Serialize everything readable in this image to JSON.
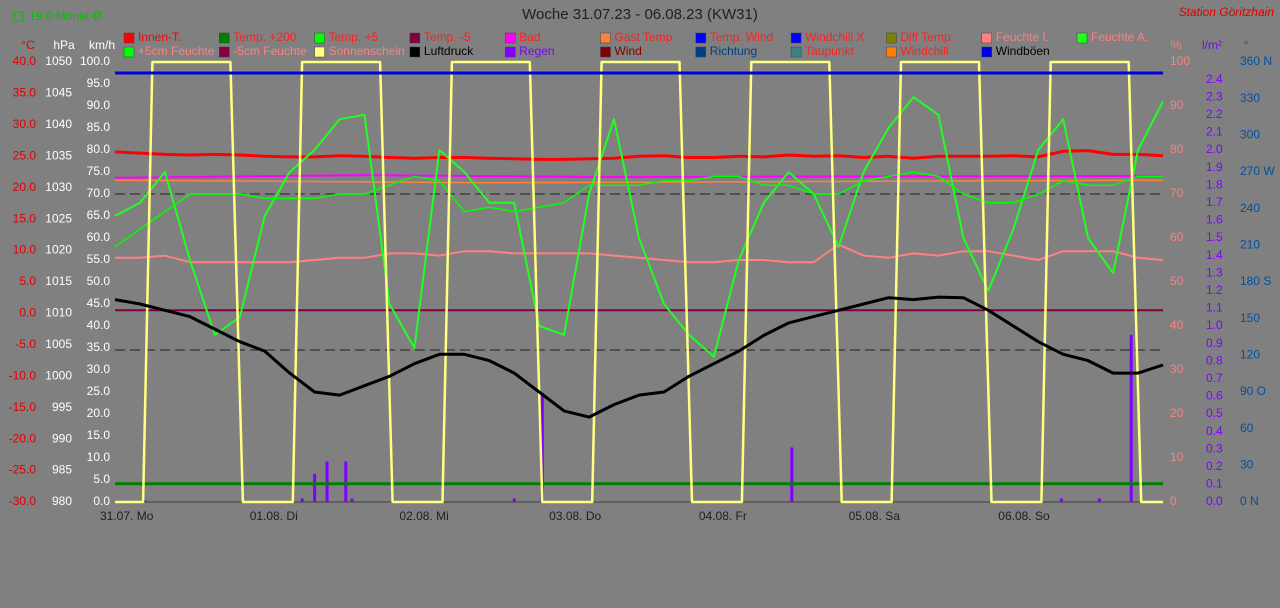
{
  "chart_data": {
    "type": "line",
    "title": "Woche 31.07.23 - 06.08.23 (KW31)",
    "station": "Station Göritzhain",
    "month_avg": "19.0 Monat-Ø",
    "x": [
      0,
      4,
      8,
      12,
      16,
      20,
      24,
      28,
      32,
      36,
      40,
      44,
      48,
      52,
      56,
      60,
      64,
      68,
      72,
      76,
      80,
      84,
      88,
      92,
      96,
      100,
      104,
      108,
      112,
      116,
      120,
      124,
      128,
      132,
      136,
      140,
      144,
      148,
      152,
      156,
      160,
      164,
      168
    ],
    "xlim": [
      0,
      168
    ],
    "xticks": [
      {
        "value": 0,
        "label": "31.07.  Mo"
      },
      {
        "value": 24,
        "label": "01.08.  Di"
      },
      {
        "value": 48,
        "label": "02.08.  Mi"
      },
      {
        "value": 72,
        "label": "03.08.  Do"
      },
      {
        "value": 96,
        "label": "04.08.  Fr"
      },
      {
        "value": 120,
        "label": "05.08.  Sa"
      },
      {
        "value": 144,
        "label": "06.08.  So"
      }
    ],
    "axes": [
      {
        "label": "°C",
        "color": "#e00000",
        "side": "left",
        "ylim": [
          -30,
          40
        ],
        "yticks": [
          {
            "value": -30,
            "label": "-30.0"
          },
          {
            "value": -25,
            "label": "-25.0"
          },
          {
            "value": -20,
            "label": "-20.0"
          },
          {
            "value": -15,
            "label": "-15.0"
          },
          {
            "value": -10,
            "label": "-10.0"
          },
          {
            "value": -5,
            "label": "-5.0"
          },
          {
            "value": 0,
            "label": "0.0"
          },
          {
            "value": 5,
            "label": "5.0"
          },
          {
            "value": 10,
            "label": "10.0"
          },
          {
            "value": 15,
            "label": "15.0"
          },
          {
            "value": 20,
            "label": "20.0"
          },
          {
            "value": 25,
            "label": "25.0"
          },
          {
            "value": 30,
            "label": "30.0"
          },
          {
            "value": 35,
            "label": "35.0"
          },
          {
            "value": 40,
            "label": "40.0"
          }
        ]
      },
      {
        "label": "hPa",
        "color": "#ffffff",
        "side": "left",
        "ylim": [
          980,
          1050
        ],
        "yticks": [
          980,
          985,
          990,
          995,
          1000,
          1005,
          1010,
          1015,
          1020,
          1025,
          1030,
          1035,
          1040,
          1045,
          1050
        ]
      },
      {
        "label": "km/h",
        "color": "#ffffff",
        "side": "left",
        "ylim": [
          0,
          100
        ],
        "yticks": [
          {
            "value": 0,
            "label": "0.0"
          },
          {
            "value": 5,
            "label": "5.0"
          },
          {
            "value": 10,
            "label": "10.0"
          },
          {
            "value": 15,
            "label": "15.0"
          },
          {
            "value": 20,
            "label": "20.0"
          },
          {
            "value": 25,
            "label": "25.0"
          },
          {
            "value": 30,
            "label": "30.0"
          },
          {
            "value": 35,
            "label": "35.0"
          },
          {
            "value": 40,
            "label": "40.0"
          },
          {
            "value": 45,
            "label": "45.0"
          },
          {
            "value": 50,
            "label": "50.0"
          },
          {
            "value": 55,
            "label": "55.0"
          },
          {
            "value": 60,
            "label": "60.0"
          },
          {
            "value": 65,
            "label": "65.0"
          },
          {
            "value": 70,
            "label": "70.0"
          },
          {
            "value": 75,
            "label": "75.0"
          },
          {
            "value": 80,
            "label": "80.0"
          },
          {
            "value": 85,
            "label": "85.0"
          },
          {
            "value": 90,
            "label": "90.0"
          },
          {
            "value": 95,
            "label": "95.0"
          },
          {
            "value": 100,
            "label": "100.0"
          }
        ]
      },
      {
        "label": "%",
        "color": "#ff8080",
        "side": "right",
        "ylim": [
          0,
          100
        ],
        "yticks": [
          0,
          10,
          20,
          30,
          40,
          50,
          60,
          70,
          80,
          90,
          100
        ]
      },
      {
        "label": "l/m²",
        "color": "#8000ff",
        "side": "right",
        "ylim": [
          0,
          2.5
        ],
        "yticks": [
          {
            "value": 0,
            "label": "0.0"
          },
          0.1,
          0.2,
          0.3,
          0.4,
          0.5,
          0.6,
          0.7,
          0.8,
          0.9,
          {
            "value": 1,
            "label": "1.0"
          },
          1.1,
          1.2,
          1.3,
          1.4,
          1.5,
          1.6,
          1.7,
          1.8,
          1.9,
          {
            "value": 2,
            "label": "2.0"
          },
          2.1,
          2.2,
          2.3,
          2.4
        ]
      },
      {
        "label": "°",
        "color": "#0050a0",
        "side": "right",
        "ylim": [
          0,
          360
        ],
        "yticks": [
          {
            "value": 0,
            "label": "0  N"
          },
          30,
          60,
          {
            "value": 90,
            "label": "90  O"
          },
          120,
          150,
          {
            "value": 180,
            "label": "180 S"
          },
          210,
          240,
          {
            "value": 270,
            "label": "270 W"
          },
          300,
          330,
          {
            "value": 360,
            "label": "360 N"
          }
        ]
      }
    ],
    "series": [
      {
        "name": "Innen-T.",
        "color": "#ff0000",
        "label_color": "#ff0000",
        "axis": 0,
        "width": 3,
        "values": [
          25.7,
          25.5,
          25.3,
          25.2,
          25.3,
          25.2,
          25.0,
          24.9,
          24.9,
          25.1,
          25.0,
          24.8,
          24.7,
          24.8,
          24.8,
          24.7,
          24.6,
          24.5,
          24.5,
          24.6,
          24.7,
          25.0,
          25.1,
          24.8,
          24.8,
          25.0,
          24.9,
          25.2,
          25.0,
          25.1,
          24.8,
          25.0,
          24.7,
          25.0,
          25.0,
          25.0,
          25.1,
          24.9,
          25.8,
          25.9,
          25.3,
          25.3,
          25.1
        ]
      },
      {
        "name": "Temp. +200",
        "color": "#008000",
        "label_color": "#ff2020",
        "axis": 0,
        "width": 3,
        "x": [
          0,
          168
        ],
        "values": [
          -27.1,
          -27.1
        ]
      },
      {
        "name": "Temp. +5",
        "color": "#00ff00",
        "label_color": "#ff2020"
      },
      {
        "name": "Temp. -5",
        "color": "#800040",
        "label_color": "#ff2020",
        "axis": 0,
        "width": 2,
        "x": [
          0,
          168
        ],
        "values": [
          0.5,
          0.5
        ]
      },
      {
        "name": "Bad",
        "color": "#ff00ff",
        "label_color": "#ff2020",
        "axis": 0,
        "width": 2,
        "x": [
          0,
          40,
          80,
          120,
          168
        ],
        "values": [
          21.6,
          22.0,
          21.7,
          21.8,
          21.9
        ]
      },
      {
        "name": "Gast Temp",
        "color": "#ff8040",
        "label_color": "#ff2020",
        "axis": 0,
        "width": 1.5,
        "x": [
          0,
          60,
          120,
          168
        ],
        "values": [
          21.2,
          20.8,
          21.0,
          21.2
        ]
      },
      {
        "name": "Temp. Wind",
        "color": "#0000ff",
        "label_color": "#ff2020"
      },
      {
        "name": "Windchill X",
        "color": "#0000ff",
        "label_color": "#ff2020"
      },
      {
        "name": "Diff Temp.",
        "color": "#808000",
        "label_color": "#ff2020"
      },
      {
        "name": "Feuchte I.",
        "color": "#ff8080",
        "label_color": "#ff8080",
        "axis": 3,
        "width": 2,
        "values": [
          55.5,
          55.5,
          56,
          54.5,
          54.5,
          54.5,
          54.5,
          54.5,
          55,
          55.5,
          55.5,
          56.5,
          56.5,
          56,
          57,
          57,
          56.5,
          56.5,
          56.5,
          56.5,
          56,
          55.5,
          55,
          54.5,
          54.5,
          55,
          55,
          54.5,
          54.5,
          58.5,
          56,
          55.5,
          56.5,
          56,
          57,
          57,
          56,
          55,
          57,
          57,
          57,
          55.5,
          55
        ]
      },
      {
        "name": "Feuchte A.",
        "color": "#20ff20",
        "label_color": "#ff8080",
        "axis": 3,
        "width": 2,
        "values": [
          65,
          68,
          75,
          55,
          38,
          42,
          65,
          75,
          80,
          87,
          88,
          45,
          35,
          80,
          75,
          68,
          68,
          40,
          38,
          70,
          87,
          60,
          45,
          38,
          33,
          55,
          68,
          75,
          70,
          58,
          75,
          85,
          92,
          88,
          60,
          48,
          62,
          80,
          87,
          60,
          52,
          80,
          91
        ]
      },
      {
        "name": "+5cm Feuchte",
        "color": "#00ff00",
        "label_color": "#ff8080",
        "axis": 3,
        "width": 1.5,
        "values": [
          58,
          62,
          66,
          70,
          70,
          70,
          69,
          69,
          69,
          70,
          70,
          72,
          74,
          73,
          66,
          67,
          66,
          67,
          68,
          72,
          72,
          72,
          73,
          73,
          74,
          74,
          72,
          72,
          70,
          70,
          73,
          74,
          75,
          74,
          70,
          68,
          68,
          70,
          73,
          72,
          72,
          74,
          74
        ]
      },
      {
        "name": "-5cm Feuchte",
        "color": "#800040",
        "label_color": "#ff8080"
      },
      {
        "name": "Sonnenschein",
        "color": "#ffff80",
        "label_color": "#ff8080",
        "axis": 3,
        "width": 2.5,
        "x": [
          0,
          4.5,
          6,
          18.5,
          20.5,
          28.5,
          30,
          42.5,
          44.5,
          52.5,
          54,
          66.5,
          68.5,
          76.5,
          78,
          90.5,
          92.5,
          100.5,
          102,
          114.5,
          116.5,
          124.5,
          126,
          138.5,
          140.5,
          148.5,
          150,
          162.5,
          164.5,
          168
        ],
        "values": [
          0,
          0,
          100,
          100,
          0,
          0,
          100,
          100,
          0,
          0,
          100,
          100,
          0,
          0,
          100,
          100,
          0,
          0,
          100,
          100,
          0,
          0,
          100,
          100,
          0,
          0,
          100,
          100,
          0,
          0
        ]
      },
      {
        "name": "Luftdruck",
        "color": "#000000",
        "label_color": "#000000",
        "axis": 1,
        "width": 3,
        "values": [
          1012.2,
          1011.5,
          1010.5,
          1009.5,
          1007.5,
          1005.5,
          1004,
          1000.5,
          997.5,
          997.0,
          998.5,
          1000,
          1002,
          1003.5,
          1003.5,
          1002.5,
          1000.5,
          997.5,
          994.5,
          993.5,
          995.5,
          997,
          997.5,
          1000,
          1002,
          1004,
          1006.5,
          1008.5,
          1009.5,
          1010.5,
          1011.5,
          1012.5,
          1012.2,
          1012.6,
          1012.5,
          1010.5,
          1008,
          1005.5,
          1003.5,
          1002.5,
          1000.5,
          1000.5,
          1001.8
        ]
      },
      {
        "name": "Regen",
        "color": "#8000ff",
        "label_color": "#8000ff",
        "axis": 4,
        "style": "bar",
        "x": [
          4.8,
          30,
          32,
          34,
          37,
          38,
          64,
          68.5,
          108.5,
          151.7,
          157.8,
          162.9
        ],
        "values": [
          0.01,
          0.02,
          0.16,
          0.23,
          0.23,
          0.02,
          0.02,
          0.62,
          0.31,
          0.02,
          0.02,
          0.95
        ]
      },
      {
        "name": "Wind",
        "color": "#800000",
        "label_color": "#800000"
      },
      {
        "name": "Richtung",
        "color": "#004080",
        "label_color": "#004080"
      },
      {
        "name": "Taupunkt",
        "color": "#408080",
        "label_color": "#ff2020"
      },
      {
        "name": "Windchill",
        "color": "#ff8000",
        "label_color": "#ff2020"
      },
      {
        "name": "Windböen",
        "color": "#0000e0",
        "label_color": "#000000",
        "axis": 2,
        "width": 3,
        "x": [
          0,
          168
        ],
        "values": [
          97.5,
          97.5
        ]
      }
    ]
  }
}
